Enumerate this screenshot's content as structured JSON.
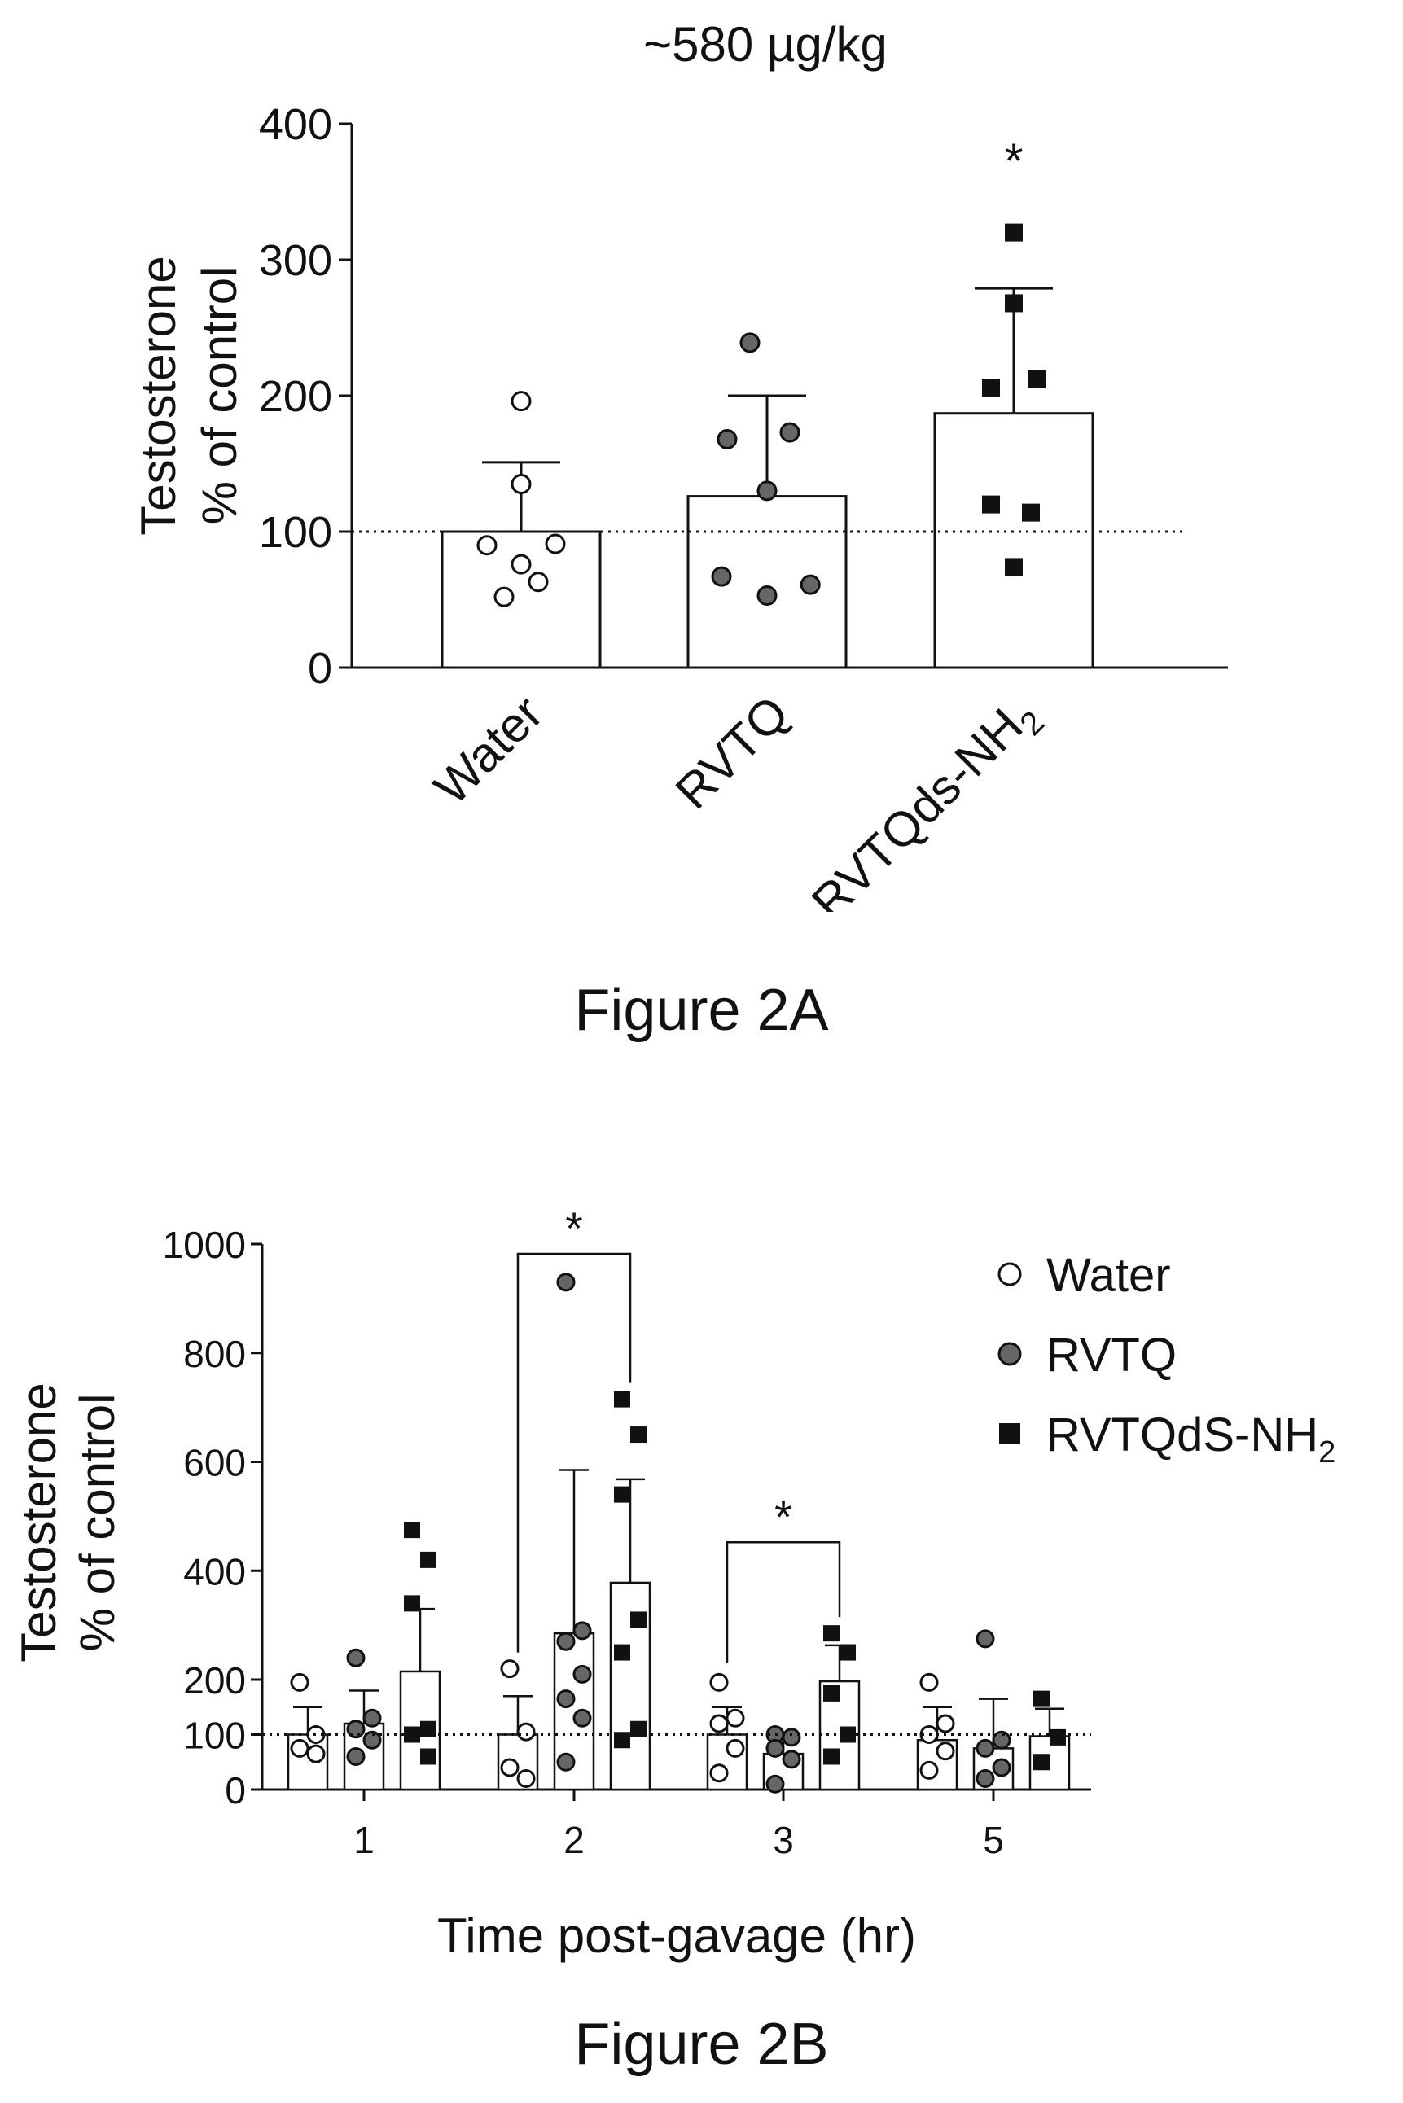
{
  "chart_data": [
    {
      "type": "bar",
      "title": "~580 µg/kg",
      "ylabel_line1": "Testosterone",
      "ylabel_line2": "% of control",
      "xlabel": "",
      "categories": [
        "Water",
        "RVTQ",
        "RVTQds-NH"
      ],
      "category_subscripts": [
        "",
        "",
        "2"
      ],
      "ylim": [
        0,
        400
      ],
      "yticks": [
        "0",
        "100",
        "200",
        "300",
        "400"
      ],
      "reference_line": 100,
      "means": [
        100,
        126,
        187
      ],
      "sem_upper": [
        151,
        200,
        279
      ],
      "points": [
        [
          196,
          135,
          90,
          91,
          76,
          63,
          52
        ],
        [
          239,
          168,
          173,
          130,
          67,
          61,
          53
        ],
        [
          320,
          268,
          206,
          212,
          120,
          114,
          74
        ]
      ],
      "markers": [
        "open-circle",
        "filled-circle",
        "filled-square"
      ],
      "annotations": [
        {
          "category": "RVTQds-NH",
          "text": "*"
        }
      ],
      "caption": "Figure 2A"
    },
    {
      "type": "bar",
      "ylabel_line1": "Testosterone",
      "ylabel_line2": "% of control",
      "xlabel": "Time post-gavage (hr)",
      "categories": [
        "1",
        "2",
        "3",
        "5"
      ],
      "ylim": [
        0,
        1000
      ],
      "yticks": [
        "0",
        "100",
        "200",
        "400",
        "600",
        "800",
        "1000"
      ],
      "reference_line": 100,
      "legend_position": "top-right",
      "series": [
        {
          "name": "Water",
          "marker": "open-circle",
          "means": [
            100,
            100,
            100,
            90
          ],
          "sem_upper": [
            150,
            170,
            150,
            150
          ],
          "points": [
            [
              195,
              100,
              75,
              65
            ],
            [
              220,
              105,
              40,
              20
            ],
            [
              195,
              130,
              120,
              75,
              30
            ],
            [
              195,
              120,
              100,
              70,
              35
            ]
          ]
        },
        {
          "name": "RVTQ",
          "marker": "filled-circle",
          "means": [
            120,
            285,
            65,
            75
          ],
          "sem_upper": [
            180,
            585,
            100,
            165
          ],
          "points": [
            [
              240,
              130,
              110,
              90,
              60
            ],
            [
              930,
              290,
              270,
              210,
              165,
              130,
              50
            ],
            [
              100,
              95,
              75,
              55,
              10
            ],
            [
              275,
              90,
              75,
              40,
              20
            ]
          ]
        },
        {
          "name": "RVTQdS-NH",
          "name_subscript": "2",
          "marker": "filled-square",
          "means": [
            215,
            378,
            197,
            97
          ],
          "sem_upper": [
            330,
            568,
            263,
            147
          ],
          "points": [
            [
              475,
              420,
              340,
              110,
              100,
              60
            ],
            [
              715,
              650,
              540,
              310,
              250,
              110,
              90
            ],
            [
              285,
              250,
              175,
              100,
              60
            ],
            [
              165,
              95,
              50
            ]
          ]
        }
      ],
      "annotations": [
        {
          "between": [
            "2:Water",
            "2:RVTQdS-NH"
          ],
          "text": "*"
        },
        {
          "between": [
            "3:Water",
            "3:RVTQdS-NH"
          ],
          "text": "*"
        }
      ],
      "caption": "Figure 2B"
    }
  ]
}
